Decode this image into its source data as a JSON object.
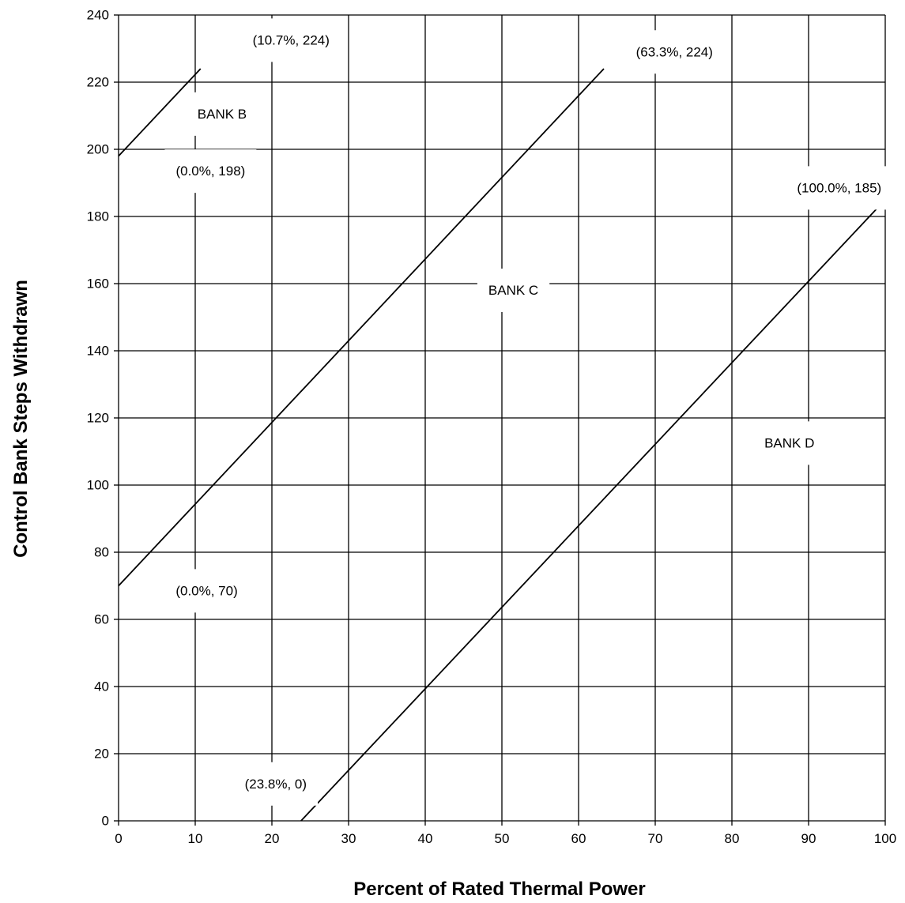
{
  "chart_data": {
    "type": "line",
    "xlabel": "Percent of Rated Thermal Power",
    "ylabel": "Control Bank Steps Withdrawn",
    "xlim": [
      0,
      100
    ],
    "ylim": [
      0,
      240
    ],
    "xticks": [
      0,
      10,
      20,
      30,
      40,
      50,
      60,
      70,
      80,
      90,
      100
    ],
    "yticks": [
      0,
      20,
      40,
      60,
      80,
      100,
      120,
      140,
      160,
      180,
      200,
      220,
      240
    ],
    "grid": true,
    "series": [
      {
        "name": "BANK B",
        "points": [
          [
            0.0,
            198
          ],
          [
            10.7,
            224
          ]
        ]
      },
      {
        "name": "BANK C",
        "points": [
          [
            0.0,
            70
          ],
          [
            63.3,
            224
          ]
        ]
      },
      {
        "name": "BANK D",
        "points": [
          [
            23.8,
            0
          ],
          [
            100.0,
            185
          ]
        ]
      }
    ],
    "annotations": [
      {
        "id": "label-bank-b",
        "text": "BANK B",
        "x": 13.5,
        "y": 210.5
      },
      {
        "id": "label-bank-c",
        "text": "BANK C",
        "x": 51.5,
        "y": 158
      },
      {
        "id": "label-bank-d",
        "text": "BANK D",
        "x": 87.5,
        "y": 112.5
      },
      {
        "id": "pt-b-top",
        "text": "(10.7%, 224)",
        "x": 22.5,
        "y": 232.5
      },
      {
        "id": "pt-b-start",
        "text": "(0.0%, 198)",
        "x": 12,
        "y": 193.5
      },
      {
        "id": "pt-c-top",
        "text": "(63.3%, 224)",
        "x": 72.5,
        "y": 229
      },
      {
        "id": "pt-c-start",
        "text": "(0.0%, 70)",
        "x": 11.5,
        "y": 68.5
      },
      {
        "id": "pt-d-top",
        "text": "(100.0%, 185)",
        "x": 94,
        "y": 188.5
      },
      {
        "id": "pt-d-start",
        "text": "(23.8%, 0)",
        "x": 20.5,
        "y": 11
      }
    ]
  }
}
